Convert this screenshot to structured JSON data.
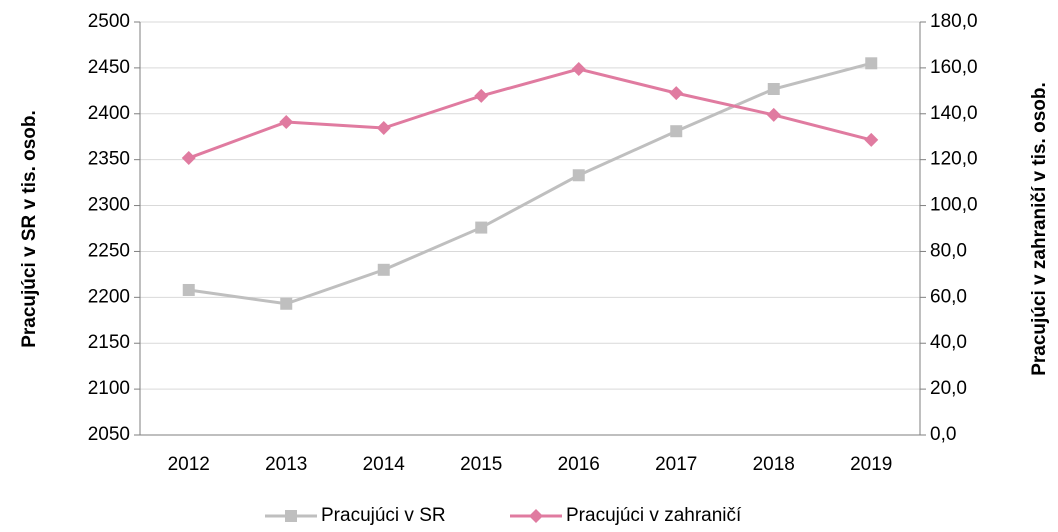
{
  "chart_data": {
    "type": "line",
    "categories": [
      "2012",
      "2013",
      "2014",
      "2015",
      "2016",
      "2017",
      "2018",
      "2019"
    ],
    "series": [
      {
        "name": "Pracujúci v SR",
        "color": "#bfbfbf",
        "marker": "square",
        "values": [
          2208,
          2193,
          2230,
          2276,
          2333,
          2381,
          2427,
          2455
        ]
      },
      {
        "name": "Pracujúci v zahraničí",
        "color": "#e07ba0",
        "marker": "diamond",
        "axis": "y2",
        "values": [
          120.7,
          136.4,
          133.8,
          147.8,
          159.5,
          149.0,
          139.5,
          128.6
        ]
      }
    ],
    "ylabel": "Pracujúci v SR v tis. osob.",
    "y2label": "Pracujúci v zahraničí v tis. osob.",
    "ylim": [
      2050,
      2500
    ],
    "yticks": [
      2050,
      2100,
      2150,
      2200,
      2250,
      2300,
      2350,
      2400,
      2450,
      2500
    ],
    "y2lim": [
      0,
      180
    ],
    "y2ticks": [
      {
        "value": 0,
        "label": "0,0"
      },
      {
        "value": 20,
        "label": "20,0"
      },
      {
        "value": 40,
        "label": "40,0"
      },
      {
        "value": 60,
        "label": "60,0"
      },
      {
        "value": 80,
        "label": "80,0"
      },
      {
        "value": 100,
        "label": "100,0"
      },
      {
        "value": 120,
        "label": "120,0"
      },
      {
        "value": 140,
        "label": "140,0"
      },
      {
        "value": 160,
        "label": "160,0"
      },
      {
        "value": 180,
        "label": "180,0"
      }
    ],
    "grid": true,
    "legend": "bottom"
  }
}
